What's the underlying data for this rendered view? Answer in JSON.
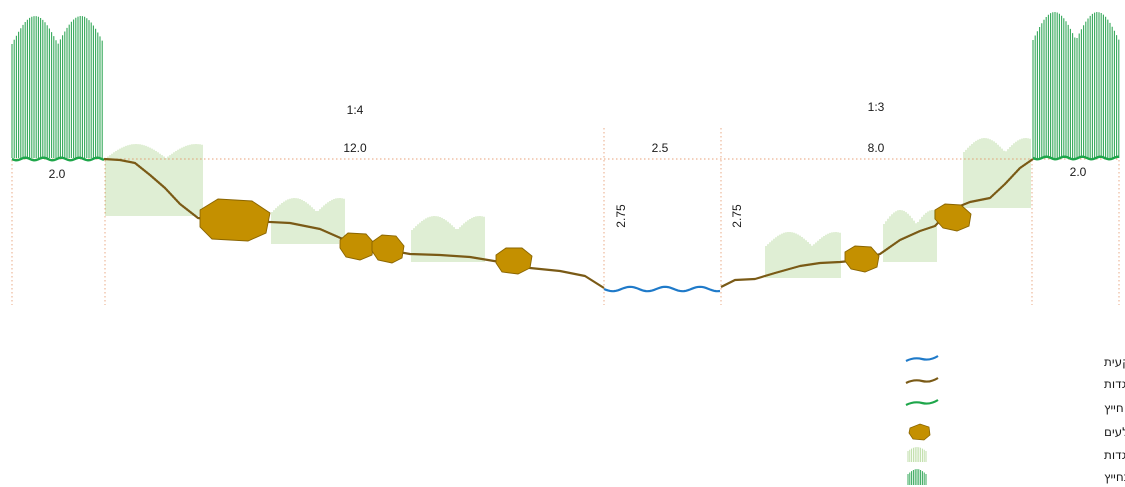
{
  "colors": {
    "bed": "#1f7ac9",
    "banks": "#7a5a16",
    "buffer": "#1ea64a",
    "stones": "#c49000",
    "stones_outline": "#8a6500",
    "low_veg": "#b9dba0",
    "high_veg": "#35a85a",
    "guide": "#e8a27a"
  },
  "slopes": {
    "left": "1:4",
    "right": "1:3"
  },
  "widths": {
    "left_buffer": "2.0",
    "left_bank": "12.0",
    "channel": "2.5",
    "right_bank": "8.0",
    "right_buffer": "2.0"
  },
  "depths": {
    "left": "2.75",
    "right": "2.75"
  },
  "legend": [
    {
      "key": "bed",
      "label": "קרקעית",
      "icon": "blue-wave-line-icon"
    },
    {
      "key": "banks",
      "label": "גדות",
      "icon": "brown-wave-line-icon"
    },
    {
      "key": "buffer",
      "label": "חייץ",
      "icon": "green-wave-line-icon"
    },
    {
      "key": "stones",
      "label": "אבנים וסלעים",
      "icon": "stone-icon"
    },
    {
      "key": "low_veg",
      "label": "שיקום צמחייה נמוכה בגדות",
      "icon": "low-vegetation-icon"
    },
    {
      "key": "high_veg",
      "label": "שיקום צמחייה גבוהה בחייץ",
      "icon": "high-vegetation-icon"
    }
  ]
}
